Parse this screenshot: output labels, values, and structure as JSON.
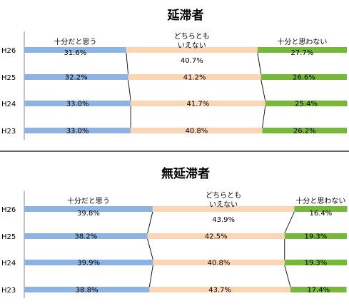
{
  "chart_data": [
    {
      "type": "bar",
      "stacked": true,
      "orientation": "horizontal",
      "percent_stacked": true,
      "title": "延滞者",
      "categories": [
        "H26",
        "H25",
        "H24",
        "H23"
      ],
      "series": [
        {
          "name": "十分だと思う",
          "values": [
            31.6,
            32.2,
            33.0,
            33.0
          ],
          "labels": [
            "31.6%",
            "32.2%",
            "33.0%",
            "33.0%"
          ],
          "color": "#8db3e2"
        },
        {
          "name": "どちらともいえない",
          "values": [
            40.7,
            41.2,
            41.7,
            40.8
          ],
          "labels": [
            "40.7%",
            "41.2%",
            "41.7%",
            "40.8%"
          ],
          "color": "#fcd5b4"
        },
        {
          "name": "十分と思わない",
          "values": [
            27.7,
            26.6,
            25.4,
            26.2
          ],
          "labels": [
            "27.7%",
            "26.6%",
            "25.4%",
            "26.2%"
          ],
          "color": "#77b83a"
        }
      ],
      "series_label_lines": [
        [
          "十分だと思う"
        ],
        [
          "どちらとも",
          "いえない"
        ],
        [
          "十分と思わない"
        ]
      ],
      "xlim": [
        0,
        100
      ]
    },
    {
      "type": "bar",
      "stacked": true,
      "orientation": "horizontal",
      "percent_stacked": true,
      "title": "無延滞者",
      "categories": [
        "H26",
        "H25",
        "H24",
        "H23"
      ],
      "series": [
        {
          "name": "十分だと思う",
          "values": [
            39.8,
            38.2,
            39.9,
            38.8
          ],
          "labels": [
            "39.8%",
            "38.2%",
            "39.9%",
            "38.8%"
          ],
          "color": "#8db3e2"
        },
        {
          "name": "どちらともいえない",
          "values": [
            43.9,
            42.5,
            40.8,
            43.7
          ],
          "labels": [
            "43.9%",
            "42.5%",
            "40.8%",
            "43.7%"
          ],
          "color": "#fcd5b4"
        },
        {
          "name": "十分と思わない",
          "values": [
            16.4,
            19.3,
            19.3,
            17.4
          ],
          "labels": [
            "16.4%",
            "19.3%",
            "19.3%",
            "17.4%"
          ],
          "color": "#77b83a"
        }
      ],
      "series_label_lines": [
        [
          "十分だと思う"
        ],
        [
          "どちらとも",
          "いえない"
        ],
        [
          "十分と思わない"
        ]
      ],
      "xlim": [
        0,
        100
      ]
    }
  ]
}
